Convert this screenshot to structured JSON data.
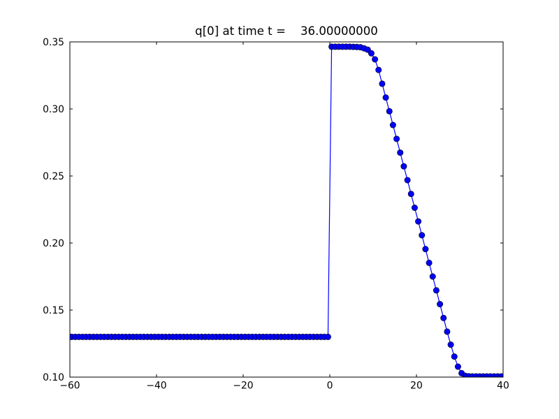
{
  "figure": {
    "background_color": "#ffffff",
    "frame_color": "#000000",
    "text_color": "#000000"
  },
  "chart_data": {
    "type": "line",
    "title": "q[0] at time t =    36.00000000",
    "xlabel": "",
    "ylabel": "",
    "xlim": [
      -60,
      40
    ],
    "ylim": [
      0.1,
      0.35
    ],
    "xticks": [
      -60,
      -40,
      -20,
      0,
      20,
      40
    ],
    "xtick_labels": [
      "−60",
      "−40",
      "−20",
      "0",
      "20",
      "40"
    ],
    "yticks": [
      0.1,
      0.15,
      0.2,
      0.25,
      0.3,
      0.35
    ],
    "ytick_labels": [
      "0.10",
      "0.15",
      "0.20",
      "0.25",
      "0.30",
      "0.35"
    ],
    "grid": false,
    "legend_position": "none",
    "series": [
      {
        "name": "q[0]",
        "line_color": "#0000ff",
        "marker": "circle",
        "marker_face_color": "#0000ff",
        "marker_edge_color": "#000000",
        "x": [
          -59.583,
          -58.75,
          -57.917,
          -57.083,
          -56.25,
          -55.417,
          -54.583,
          -53.75,
          -52.917,
          -52.083,
          -51.25,
          -50.417,
          -49.583,
          -48.75,
          -47.917,
          -47.083,
          -46.25,
          -45.417,
          -44.583,
          -43.75,
          -42.917,
          -42.083,
          -41.25,
          -40.417,
          -39.583,
          -38.75,
          -37.917,
          -37.083,
          -36.25,
          -35.417,
          -34.583,
          -33.75,
          -32.917,
          -32.083,
          -31.25,
          -30.417,
          -29.583,
          -28.75,
          -27.917,
          -27.083,
          -26.25,
          -25.417,
          -24.583,
          -23.75,
          -22.917,
          -22.083,
          -21.25,
          -20.417,
          -19.583,
          -18.75,
          -17.917,
          -17.083,
          -16.25,
          -15.417,
          -14.583,
          -13.75,
          -12.917,
          -12.083,
          -11.25,
          -10.417,
          -9.583,
          -8.75,
          -7.917,
          -7.083,
          -6.25,
          -5.417,
          -4.583,
          -3.75,
          -2.917,
          -2.083,
          -1.25,
          -0.417,
          0.417,
          1.25,
          2.083,
          2.917,
          3.75,
          4.583,
          5.417,
          6.25,
          7.083,
          7.917,
          8.75,
          9.583,
          10.417,
          11.25,
          12.083,
          12.917,
          13.75,
          14.583,
          15.417,
          16.25,
          17.083,
          17.917,
          18.75,
          19.583,
          20.417,
          21.25,
          22.083,
          22.917,
          23.75,
          24.583,
          25.417,
          26.25,
          27.083,
          27.917,
          28.75,
          29.583,
          30.417,
          31.25,
          32.083,
          32.917,
          33.75,
          34.583,
          35.417,
          36.25,
          37.083,
          37.917,
          38.75,
          39.583
        ],
        "values": [
          0.13,
          0.13,
          0.13,
          0.13,
          0.13,
          0.13,
          0.13,
          0.13,
          0.13,
          0.13,
          0.13,
          0.13,
          0.13,
          0.13,
          0.13,
          0.13,
          0.13,
          0.13,
          0.13,
          0.13,
          0.13,
          0.13,
          0.13,
          0.13,
          0.13,
          0.13,
          0.13,
          0.13,
          0.13,
          0.13,
          0.13,
          0.13,
          0.13,
          0.13,
          0.13,
          0.13,
          0.13,
          0.13,
          0.13,
          0.13,
          0.13,
          0.13,
          0.13,
          0.13,
          0.13,
          0.13,
          0.13,
          0.13,
          0.13,
          0.13,
          0.13,
          0.13,
          0.13,
          0.13,
          0.13,
          0.13,
          0.13,
          0.13,
          0.13,
          0.13,
          0.13,
          0.13,
          0.13,
          0.13,
          0.13,
          0.13,
          0.13,
          0.13,
          0.13,
          0.13,
          0.13,
          0.13,
          0.3464,
          0.3464,
          0.3464,
          0.3464,
          0.3464,
          0.3464,
          0.3463,
          0.3462,
          0.346,
          0.3452,
          0.3442,
          0.3415,
          0.337,
          0.3291,
          0.3188,
          0.3085,
          0.2983,
          0.288,
          0.2777,
          0.2674,
          0.2572,
          0.2469,
          0.2366,
          0.2263,
          0.2161,
          0.2058,
          0.1955,
          0.1852,
          0.175,
          0.1647,
          0.1544,
          0.1441,
          0.1339,
          0.1242,
          0.1153,
          0.1078,
          0.1029,
          0.101,
          0.1006,
          0.1005,
          0.1005,
          0.1005,
          0.1005,
          0.1005,
          0.1005,
          0.1005,
          0.1005,
          0.1005
        ]
      }
    ]
  }
}
